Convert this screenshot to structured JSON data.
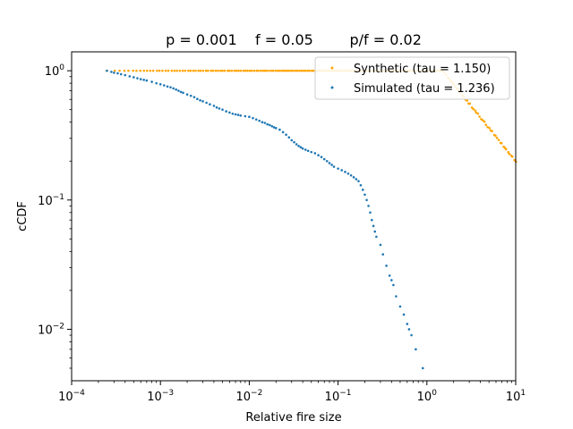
{
  "chart_data": {
    "type": "scatter",
    "title": "p = 0.001    f = 0.05        p/f = 0.02",
    "xlabel": "Relative fire size",
    "ylabel": "cCDF",
    "xscale": "log",
    "yscale": "log",
    "xlim": [
      0.0001,
      10
    ],
    "ylim": [
      0.004,
      1.4
    ],
    "grid": false,
    "legend_position": "upper-right",
    "x_ticks": [
      {
        "value": 0.0001,
        "label": "10",
        "exp": "−4"
      },
      {
        "value": 0.001,
        "label": "10",
        "exp": "−3"
      },
      {
        "value": 0.01,
        "label": "10",
        "exp": "−2"
      },
      {
        "value": 0.1,
        "label": "10",
        "exp": "−1"
      },
      {
        "value": 1,
        "label": "10",
        "exp": "0"
      },
      {
        "value": 10,
        "label": "10",
        "exp": "1"
      }
    ],
    "y_ticks": [
      {
        "value": 0.01,
        "label": "10",
        "exp": "−2"
      },
      {
        "value": 0.1,
        "label": "10",
        "exp": "−1"
      },
      {
        "value": 1,
        "label": "10",
        "exp": "0"
      }
    ],
    "series": [
      {
        "name": "Synthetic  (tau = 1.150)",
        "color": "#ffa500",
        "tau": 1.15,
        "x_min": 0.00025,
        "x_max": 10,
        "y_at_xmax": 0.2,
        "n_points": 200,
        "seed": 7
      },
      {
        "name": "Simulated (tau = 1.236)",
        "color": "#1f77b4",
        "points": [
          [
            0.00025,
            1.0
          ],
          [
            0.00028,
            0.98
          ],
          [
            0.0003,
            0.965
          ],
          [
            0.00033,
            0.955
          ],
          [
            0.00036,
            0.94
          ],
          [
            0.0004,
            0.925
          ],
          [
            0.00045,
            0.905
          ],
          [
            0.0005,
            0.89
          ],
          [
            0.00055,
            0.875
          ],
          [
            0.0006,
            0.86
          ],
          [
            0.00065,
            0.85
          ],
          [
            0.0007,
            0.84
          ],
          [
            0.0008,
            0.82
          ],
          [
            0.0009,
            0.8
          ],
          [
            0.001,
            0.785
          ],
          [
            0.0011,
            0.77
          ],
          [
            0.0012,
            0.755
          ],
          [
            0.0013,
            0.745
          ],
          [
            0.0014,
            0.73
          ],
          [
            0.0015,
            0.715
          ],
          [
            0.0016,
            0.7
          ],
          [
            0.0017,
            0.685
          ],
          [
            0.0018,
            0.675
          ],
          [
            0.002,
            0.655
          ],
          [
            0.0022,
            0.64
          ],
          [
            0.0024,
            0.625
          ],
          [
            0.0026,
            0.605
          ],
          [
            0.0028,
            0.59
          ],
          [
            0.003,
            0.58
          ],
          [
            0.0033,
            0.565
          ],
          [
            0.0036,
            0.55
          ],
          [
            0.004,
            0.535
          ],
          [
            0.0043,
            0.52
          ],
          [
            0.0046,
            0.51
          ],
          [
            0.005,
            0.5
          ],
          [
            0.0055,
            0.485
          ],
          [
            0.006,
            0.475
          ],
          [
            0.0065,
            0.465
          ],
          [
            0.007,
            0.46
          ],
          [
            0.0075,
            0.455
          ],
          [
            0.008,
            0.45
          ],
          [
            0.009,
            0.445
          ],
          [
            0.01,
            0.44
          ],
          [
            0.011,
            0.43
          ],
          [
            0.012,
            0.42
          ],
          [
            0.013,
            0.41
          ],
          [
            0.014,
            0.4
          ],
          [
            0.015,
            0.395
          ],
          [
            0.016,
            0.385
          ],
          [
            0.017,
            0.38
          ],
          [
            0.018,
            0.372
          ],
          [
            0.019,
            0.365
          ],
          [
            0.02,
            0.36
          ],
          [
            0.022,
            0.35
          ],
          [
            0.024,
            0.335
          ],
          [
            0.026,
            0.32
          ],
          [
            0.028,
            0.305
          ],
          [
            0.03,
            0.29
          ],
          [
            0.032,
            0.28
          ],
          [
            0.034,
            0.27
          ],
          [
            0.036,
            0.262
          ],
          [
            0.038,
            0.256
          ],
          [
            0.04,
            0.25
          ],
          [
            0.043,
            0.245
          ],
          [
            0.046,
            0.24
          ],
          [
            0.05,
            0.235
          ],
          [
            0.055,
            0.23
          ],
          [
            0.06,
            0.222
          ],
          [
            0.065,
            0.215
          ],
          [
            0.07,
            0.207
          ],
          [
            0.075,
            0.2
          ],
          [
            0.08,
            0.193
          ],
          [
            0.085,
            0.187
          ],
          [
            0.09,
            0.181
          ],
          [
            0.1,
            0.175
          ],
          [
            0.11,
            0.17
          ],
          [
            0.12,
            0.165
          ],
          [
            0.13,
            0.16
          ],
          [
            0.14,
            0.155
          ],
          [
            0.15,
            0.15
          ],
          [
            0.16,
            0.145
          ],
          [
            0.17,
            0.14
          ],
          [
            0.18,
            0.13
          ],
          [
            0.19,
            0.12
          ],
          [
            0.2,
            0.11
          ],
          [
            0.21,
            0.1
          ],
          [
            0.22,
            0.09
          ],
          [
            0.23,
            0.08
          ],
          [
            0.24,
            0.07
          ],
          [
            0.25,
            0.063
          ],
          [
            0.26,
            0.057
          ],
          [
            0.27,
            0.052
          ],
          [
            0.3,
            0.045
          ],
          [
            0.32,
            0.038
          ],
          [
            0.35,
            0.031
          ],
          [
            0.38,
            0.026
          ],
          [
            0.4,
            0.024
          ],
          [
            0.42,
            0.022
          ],
          [
            0.45,
            0.018
          ],
          [
            0.5,
            0.015
          ],
          [
            0.55,
            0.013
          ],
          [
            0.6,
            0.011
          ],
          [
            0.63,
            0.01
          ],
          [
            0.67,
            0.009
          ],
          [
            0.75,
            0.007
          ],
          [
            0.9,
            0.005
          ]
        ]
      }
    ]
  }
}
